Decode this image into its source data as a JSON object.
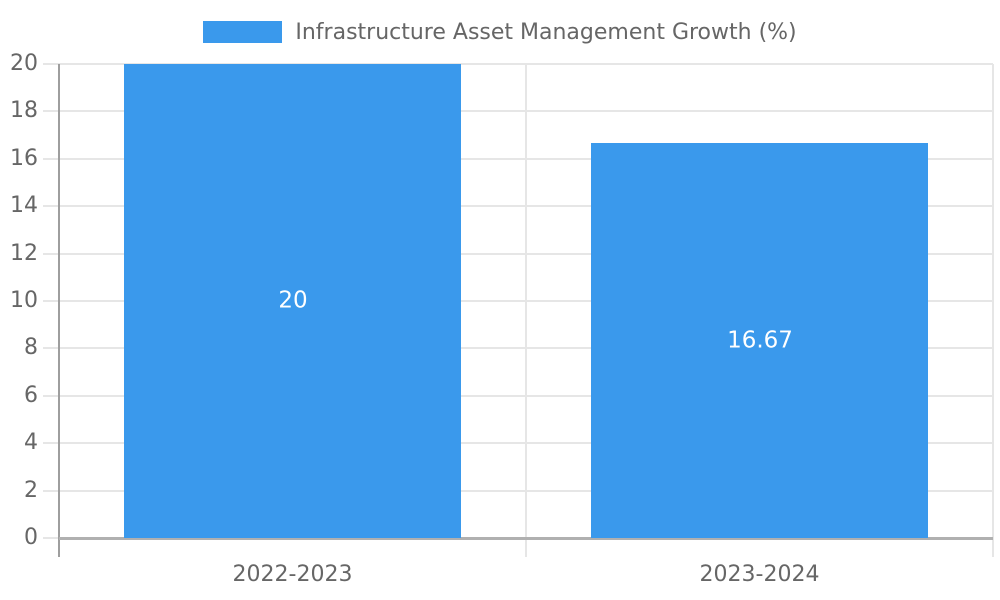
{
  "chart_data": {
    "type": "bar",
    "title": "Infrastructure Asset Management Growth (%)",
    "categories": [
      "2022-2023",
      "2023-2024"
    ],
    "values": [
      20,
      16.67
    ],
    "data_labels": [
      "20",
      "16.67"
    ],
    "xlabel": "",
    "ylabel": "",
    "ylim": [
      0,
      20
    ],
    "ytick_step": 2,
    "ytick_labels": [
      "0",
      "2",
      "4",
      "6",
      "8",
      "10",
      "12",
      "14",
      "16",
      "18",
      "20"
    ],
    "grid": true,
    "legend_position": "top",
    "colors": {
      "bar": "#3a99ec",
      "gridline": "#e6e6e6",
      "axis_line_left": "#9e9e9e",
      "axis_line_bottom": "#b0b0b0",
      "axis_text": "#666666",
      "data_label": "#ffffff",
      "background": "#ffffff"
    }
  }
}
